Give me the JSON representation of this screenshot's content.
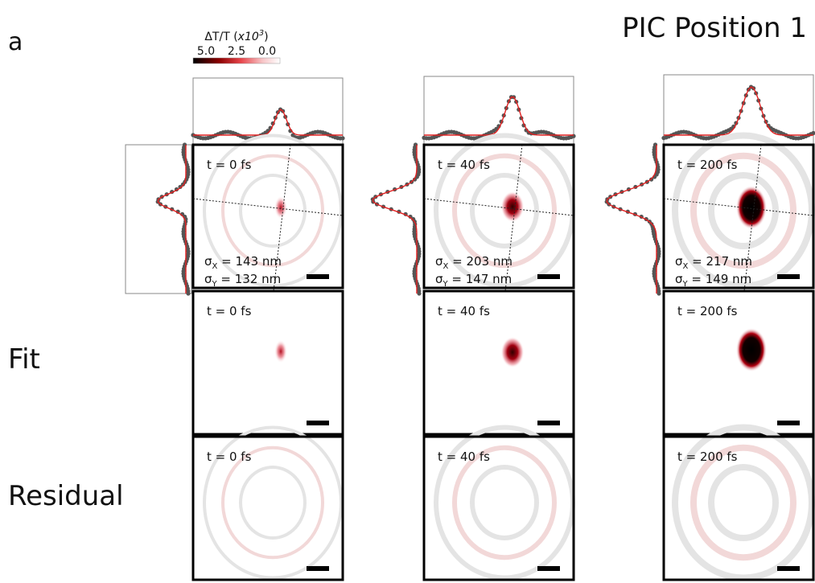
{
  "panel_label": "a",
  "title": "PIC Position 1",
  "colorbar": {
    "label_prefix": "ΔT/T (",
    "label_base": "x10",
    "label_exp": "3",
    "label_suffix": ")",
    "ticks": [
      "5.0",
      "2.5",
      "0.0"
    ]
  },
  "row_labels": [
    "Fit",
    "Residual"
  ],
  "columns": [
    {
      "time": "t = 0 fs",
      "sigma_x": {
        "symbol": "σ",
        "sub": "X",
        "text": " = 143 nm"
      },
      "sigma_y": {
        "symbol": "σ",
        "sub": "Y",
        "text": " = 132 nm"
      }
    },
    {
      "time": "t = 40 fs",
      "sigma_x": {
        "symbol": "σ",
        "sub": "X",
        "text": " = 203 nm"
      },
      "sigma_y": {
        "symbol": "σ",
        "sub": "Y",
        "text": " = 147 nm"
      }
    },
    {
      "time": "t = 200 fs",
      "sigma_x": {
        "symbol": "σ",
        "sub": "X",
        "text": " = 217 nm"
      },
      "sigma_y": {
        "symbol": "σ",
        "sub": "Y",
        "text": " = 149 nm"
      }
    }
  ]
}
